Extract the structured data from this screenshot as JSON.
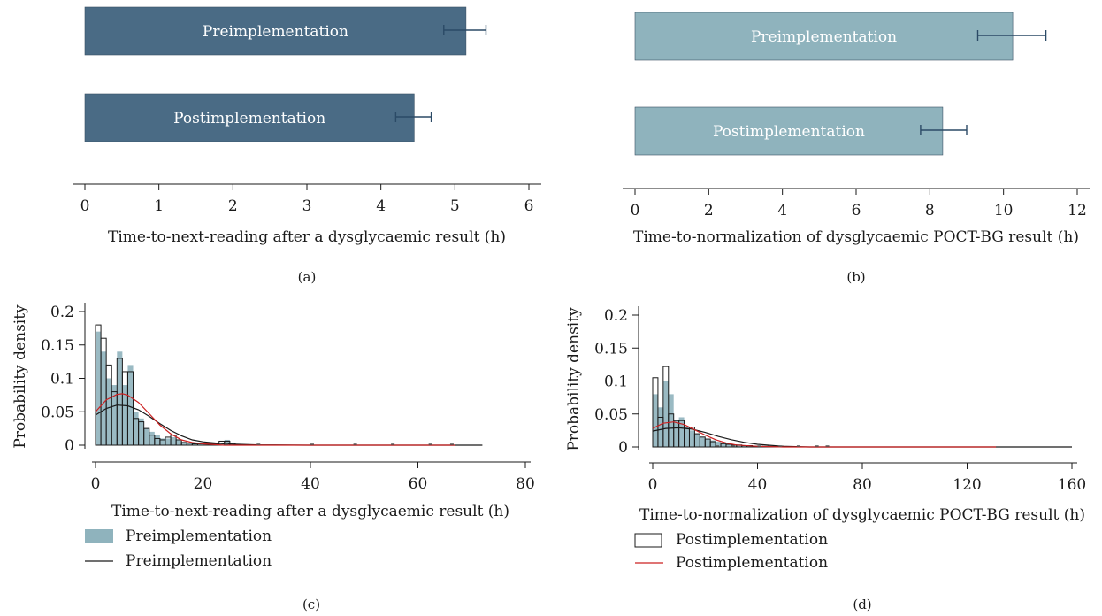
{
  "colors": {
    "bar_a": "#4a6b85",
    "bar_b": "#8fb3bd",
    "hist_pre_fill": "#8fb3bd",
    "hist_post_edge": "#1a1a1a",
    "kde_pre": "#1a1a1a",
    "kde_post": "#cc2222",
    "axis": "#1a1a1a",
    "bar_text": "#ffffff"
  },
  "chart_data": [
    {
      "panel": "(a)",
      "type": "bar",
      "orientation": "horizontal",
      "categories": [
        "Preimplementation",
        "Postimplementation"
      ],
      "values": [
        5.15,
        4.45
      ],
      "error_high": [
        5.42,
        4.68
      ],
      "error_low": [
        4.85,
        4.2
      ],
      "xlabel": "Time-to-next-reading after a dysglycaemic result (h)",
      "xlim": [
        0,
        6
      ],
      "xticks": [
        0,
        1,
        2,
        3,
        4,
        5,
        6
      ]
    },
    {
      "panel": "(b)",
      "type": "bar",
      "orientation": "horizontal",
      "categories": [
        "Preimplementation",
        "Postimplementation"
      ],
      "values": [
        10.25,
        8.35
      ],
      "error_high": [
        11.15,
        9.0
      ],
      "error_low": [
        9.3,
        7.75
      ],
      "xlabel": "Time-to-normalization of dysglycaemic POCT-BG result (h)",
      "xlim": [
        0,
        12
      ],
      "xticks": [
        0,
        2,
        4,
        6,
        8,
        10,
        12
      ]
    },
    {
      "panel": "(c)",
      "type": "histogram",
      "xlabel": "Time-to-next-reading after a dysglycaemic result (h)",
      "ylabel": "Probability density",
      "xlim": [
        0,
        80
      ],
      "ylim": [
        0,
        0.2
      ],
      "xticks": [
        0,
        20,
        40,
        60,
        80
      ],
      "yticks": [
        0,
        0.05,
        0.1,
        0.15,
        0.2
      ],
      "bin_width": 1,
      "legend": [
        "Preimplementation",
        "Preimplementation"
      ],
      "series": [
        {
          "name": "Preimplementation",
          "kind": "filled histogram",
          "values": [
            0.17,
            0.14,
            0.1,
            0.09,
            0.14,
            0.09,
            0.12,
            0.05,
            0.04,
            0.025,
            0.02,
            0.015,
            0.01,
            0.01,
            0.012,
            0.008,
            0.005,
            0.004,
            0.003,
            0.003,
            0.002,
            0.002,
            0.002,
            0.003,
            0.008,
            0.004
          ]
        },
        {
          "name": "",
          "kind": "outline histogram",
          "values": [
            0.18,
            0.16,
            0.12,
            0.08,
            0.13,
            0.11,
            0.11,
            0.04,
            0.035,
            0.025,
            0.015,
            0.01,
            0.008,
            0.012,
            0.015,
            0.008,
            0.004,
            0.003,
            0.002,
            0.002,
            0.002,
            0.002,
            0.002,
            0.006,
            0.006,
            0.003
          ]
        },
        {
          "name": "Preimplementation",
          "kind": "line",
          "x": [
            0,
            2,
            4,
            6,
            8,
            10,
            12,
            14,
            16,
            18,
            20,
            24,
            30,
            40,
            50,
            60,
            72
          ],
          "y": [
            0.045,
            0.055,
            0.06,
            0.059,
            0.053,
            0.043,
            0.032,
            0.022,
            0.014,
            0.008,
            0.005,
            0.002,
            0.0005,
            0,
            0,
            0,
            0
          ]
        },
        {
          "name": "",
          "kind": "line",
          "x": [
            0,
            2,
            4,
            5,
            6,
            8,
            10,
            12,
            14,
            16,
            18,
            20,
            24,
            30,
            40,
            50,
            60,
            67
          ],
          "y": [
            0.05,
            0.068,
            0.076,
            0.077,
            0.075,
            0.064,
            0.047,
            0.03,
            0.017,
            0.008,
            0.004,
            0.002,
            0,
            0,
            0,
            0,
            0,
            0
          ]
        }
      ]
    },
    {
      "panel": "(d)",
      "type": "histogram",
      "xlabel": "Time-to-normalization of dysglycaemic POCT-BG result (h)",
      "ylabel": "Probability density",
      "xlim": [
        0,
        160
      ],
      "ylim": [
        0,
        0.2
      ],
      "xticks": [
        0,
        40,
        80,
        120,
        160
      ],
      "yticks": [
        0,
        0.05,
        0.1,
        0.15,
        0.2
      ],
      "bin_width": 2,
      "legend": [
        "Postimplementation",
        "Postimplementation"
      ],
      "series": [
        {
          "name": "",
          "kind": "filled histogram",
          "values": [
            0.08,
            0.06,
            0.1,
            0.08,
            0.04,
            0.045,
            0.03,
            0.025,
            0.02,
            0.015,
            0.012,
            0.01,
            0.008,
            0.006,
            0.005,
            0.004,
            0.003,
            0.002,
            0.002,
            0.002,
            0.001,
            0.001,
            0.001,
            0.001,
            0.001
          ]
        },
        {
          "name": "Postimplementation",
          "kind": "outline histogram",
          "values": [
            0.105,
            0.045,
            0.122,
            0.05,
            0.04,
            0.04,
            0.03,
            0.03,
            0.02,
            0.015,
            0.012,
            0.008,
            0.006,
            0.005,
            0.004,
            0.003,
            0.003,
            0.002,
            0.002,
            0.001,
            0.001,
            0.001,
            0.001,
            0.001,
            0.001
          ]
        },
        {
          "name": "",
          "kind": "line",
          "x": [
            0,
            5,
            10,
            15,
            20,
            25,
            30,
            35,
            40,
            50,
            60,
            80,
            100,
            120,
            140,
            160
          ],
          "y": [
            0.024,
            0.028,
            0.029,
            0.027,
            0.022,
            0.016,
            0.011,
            0.007,
            0.004,
            0.001,
            0,
            0,
            0,
            0,
            0,
            0
          ]
        },
        {
          "name": "Postimplementation",
          "kind": "line",
          "x": [
            0,
            4,
            8,
            12,
            16,
            20,
            24,
            28,
            32,
            40,
            50,
            60,
            80,
            100,
            131
          ],
          "y": [
            0.028,
            0.036,
            0.038,
            0.034,
            0.026,
            0.018,
            0.011,
            0.006,
            0.003,
            0.001,
            0,
            0,
            0,
            0,
            0
          ]
        }
      ]
    }
  ]
}
